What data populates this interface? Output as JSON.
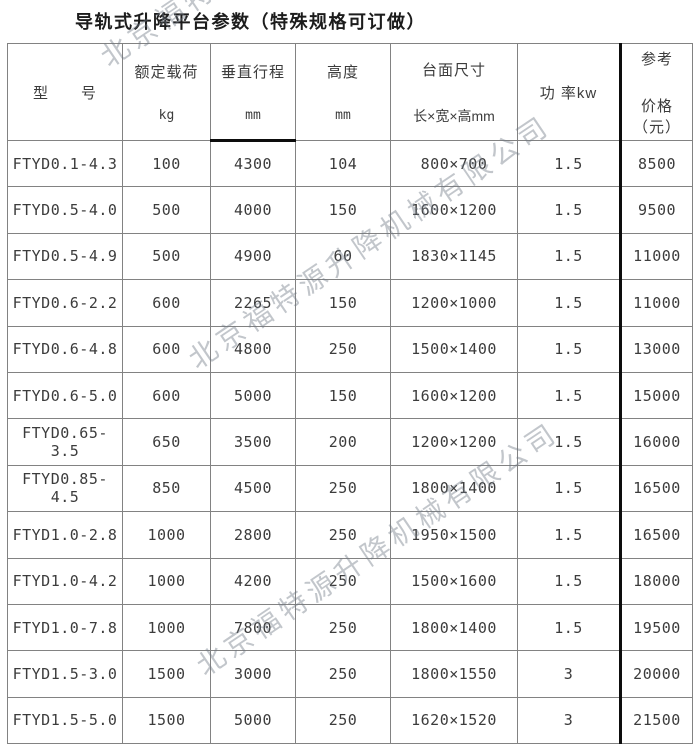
{
  "page": {
    "title": "导轨式升降平台参数（特殊规格可订做）",
    "watermark_text": "北京福特源升降机械有限公司",
    "colors": {
      "border": "#828282",
      "thick_border": "#0d0d0d",
      "text": "#3c3c3c",
      "title_text": "#1c1c1c",
      "background": "#ffffff"
    }
  },
  "table": {
    "headers": [
      {
        "line1": "型　　号",
        "line2": ""
      },
      {
        "line1": "额定载荷",
        "line2": "kg"
      },
      {
        "line1": "垂直行程",
        "line2": "mm"
      },
      {
        "line1": "高度",
        "line2": "mm"
      },
      {
        "line1": "台面尺寸",
        "line2": "长×宽×高mm"
      },
      {
        "line1": "功 率kw",
        "line2": ""
      },
      {
        "line1": "参考",
        "line2": "价格（元）"
      }
    ],
    "column_keys": [
      "model",
      "rated-load",
      "vertical-travel",
      "height",
      "platform-size",
      "power",
      "price"
    ],
    "rows": [
      [
        "FTYD0.1-4.3",
        "100",
        "4300",
        "104",
        "800×700",
        "1.5",
        "8500"
      ],
      [
        "FTYD0.5-4.0",
        "500",
        "4000",
        "150",
        "1600×1200",
        "1.5",
        "9500"
      ],
      [
        "FTYD0.5-4.9",
        "500",
        "4900",
        "60",
        "1830×1145",
        "1.5",
        "11000"
      ],
      [
        "FTYD0.6-2.2",
        "600",
        "2265",
        "150",
        "1200×1000",
        "1.5",
        "11000"
      ],
      [
        "FTYD0.6-4.8",
        "600",
        "4800",
        "250",
        "1500×1400",
        "1.5",
        "13000"
      ],
      [
        "FTYD0.6-5.0",
        "600",
        "5000",
        "150",
        "1600×1200",
        "1.5",
        "15000"
      ],
      [
        "FTYD0.65-3.5",
        "650",
        "3500",
        "200",
        "1200×1200",
        "1.5",
        "16000"
      ],
      [
        "FTYD0.85-4.5",
        "850",
        "4500",
        "250",
        "1800×1400",
        "1.5",
        "16500"
      ],
      [
        "FTYD1.0-2.8",
        "1000",
        "2800",
        "250",
        "1950×1500",
        "1.5",
        "16500"
      ],
      [
        "FTYD1.0-4.2",
        "1000",
        "4200",
        "250",
        "1500×1600",
        "1.5",
        "18000"
      ],
      [
        "FTYD1.0-7.8",
        "1000",
        "7800",
        "250",
        "1800×1400",
        "1.5",
        "19500"
      ],
      [
        "FTYD1.5-3.0",
        "1500",
        "3000",
        "250",
        "1800×1550",
        "3",
        "20000"
      ],
      [
        "FTYD1.5-5.0",
        "1500",
        "5000",
        "250",
        "1620×1520",
        "3",
        "21500"
      ]
    ]
  }
}
